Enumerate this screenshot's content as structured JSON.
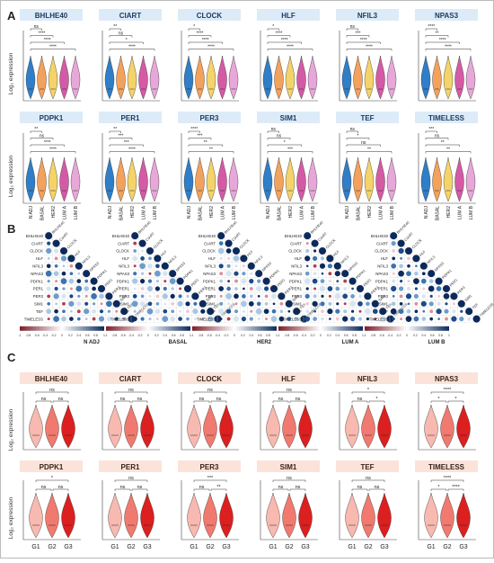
{
  "panels": {
    "A": {
      "label": "A",
      "ylabel": "Log₂ expression",
      "group_labels": [
        "N ADJ",
        "BASAL",
        "HER2",
        "LUM A",
        "LUM B"
      ],
      "violin_colors": [
        "#2f7ec7",
        "#f2a25c",
        "#f4d36a",
        "#d55aa6",
        "#e7a7d8"
      ],
      "genes": [
        {
          "name": "BHLHE40",
          "sig": [
            "ns",
            "****",
            "****",
            "****"
          ]
        },
        {
          "name": "CIART",
          "sig": [
            "**",
            "ns",
            "*",
            "****"
          ]
        },
        {
          "name": "CLOCK",
          "sig": [
            "*",
            "****",
            "****",
            "****"
          ]
        },
        {
          "name": "HLF",
          "sig": [
            "*",
            "****",
            "****",
            "****"
          ]
        },
        {
          "name": "NFIL3",
          "sig": [
            "ns",
            "***",
            "****",
            "****"
          ]
        },
        {
          "name": "NPAS3",
          "sig": [
            "****",
            "**",
            "****",
            "****"
          ]
        },
        {
          "name": "PDPK1",
          "sig": [
            "**",
            "ns",
            "****",
            "****"
          ]
        },
        {
          "name": "PER1",
          "sig": [
            "**",
            "***",
            "***",
            "****"
          ]
        },
        {
          "name": "PER3",
          "sig": [
            "****",
            "***",
            "**",
            "**"
          ]
        },
        {
          "name": "SIM1",
          "sig": [
            "ns",
            "ns",
            "*",
            "***"
          ]
        },
        {
          "name": "TEF",
          "sig": [
            "ns",
            "*",
            "ns",
            "**"
          ]
        },
        {
          "name": "TIMELESS",
          "sig": [
            "***",
            "ns",
            "**",
            "**"
          ]
        }
      ]
    },
    "B": {
      "label": "B",
      "genes": [
        "BHLHE40",
        "CIART",
        "CLOCK",
        "HLF",
        "NFIL3",
        "NPAS3",
        "PDPK1",
        "PER1",
        "PER3",
        "SIM1",
        "TEF",
        "TIMELESS"
      ],
      "groups": [
        "N ADJ",
        "BASAL",
        "HER2",
        "LUM A",
        "LUM B"
      ],
      "scale_ticks": [
        "-1",
        "-0.8",
        "-0.6",
        "-0.4",
        "-0.2",
        "0",
        "0.2",
        "0.4",
        "0.6",
        "0.8",
        "1"
      ],
      "scale_colors": [
        "#7a1f2b",
        "#ffffff",
        "#0b2a5b"
      ]
    },
    "C": {
      "label": "C",
      "ylabel": "Log₂ expression",
      "group_labels": [
        "G1",
        "G2",
        "G3"
      ],
      "violin_colors": [
        "#f7b9b0",
        "#f07a6f",
        "#dc1f1f"
      ],
      "genes": [
        {
          "name": "BHLHE40",
          "sig": [
            "ns",
            "ns",
            "ns"
          ]
        },
        {
          "name": "CIART",
          "sig": [
            "ns",
            "ns",
            "ns"
          ]
        },
        {
          "name": "CLOCK",
          "sig": [
            "ns",
            "ns",
            "ns"
          ]
        },
        {
          "name": "HLF",
          "sig": [
            "ns",
            "ns",
            "ns"
          ]
        },
        {
          "name": "NFIL3",
          "sig": [
            "*",
            "ns",
            "*"
          ]
        },
        {
          "name": "NPAS3",
          "sig": [
            "****",
            "*",
            "*"
          ]
        },
        {
          "name": "PDPK1",
          "sig": [
            "*",
            "ns",
            "ns"
          ]
        },
        {
          "name": "PER1",
          "sig": [
            "ns",
            "ns",
            "ns"
          ]
        },
        {
          "name": "PER3",
          "sig": [
            "***",
            "ns",
            "**"
          ]
        },
        {
          "name": "SIM1",
          "sig": [
            "ns",
            "ns",
            "ns"
          ]
        },
        {
          "name": "TEF",
          "sig": [
            "ns",
            "ns",
            "ns"
          ]
        },
        {
          "name": "TIMELESS",
          "sig": [
            "****",
            "*",
            "****"
          ]
        }
      ]
    }
  }
}
